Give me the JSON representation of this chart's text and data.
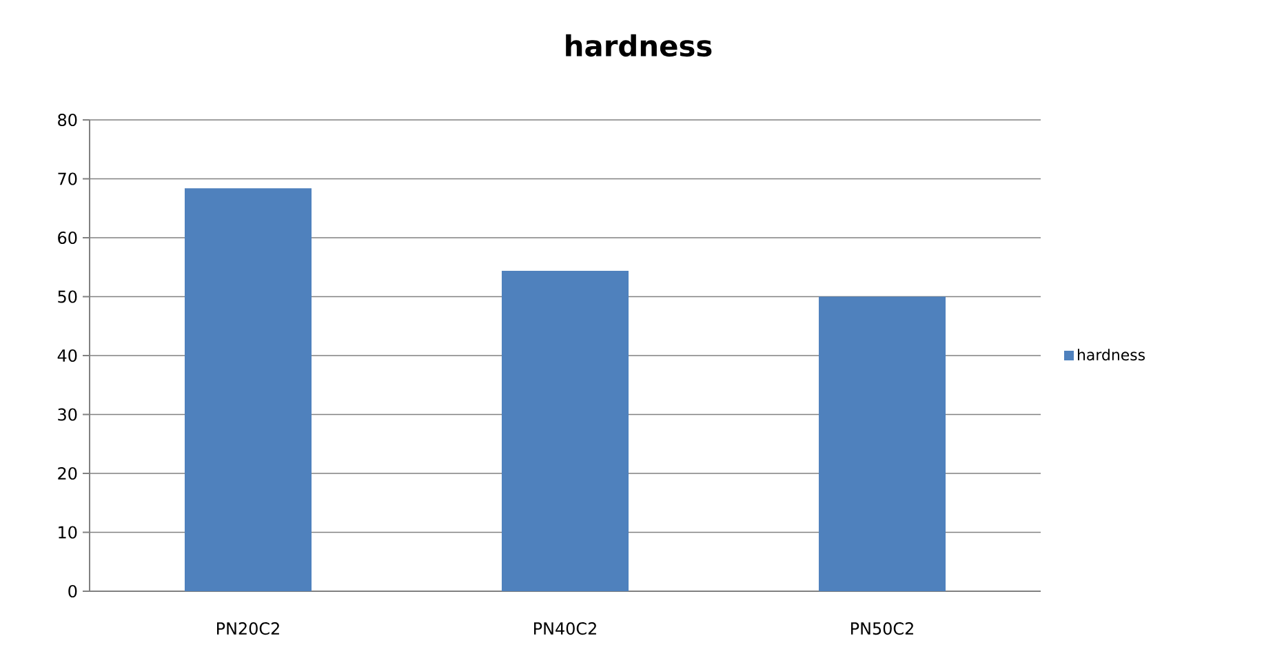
{
  "chart_data": {
    "type": "bar",
    "title": "hardness",
    "categories": [
      "PN20C2",
      "PN40C2",
      "PN50C2"
    ],
    "series": [
      {
        "name": "hardness",
        "color": "#4f81bd",
        "values": [
          68.4,
          54.4,
          50.0
        ]
      }
    ],
    "ylim": [
      0,
      80
    ],
    "yticks": [
      0,
      10,
      20,
      30,
      40,
      50,
      60,
      70,
      80
    ],
    "grid": "y",
    "legend": "right"
  }
}
